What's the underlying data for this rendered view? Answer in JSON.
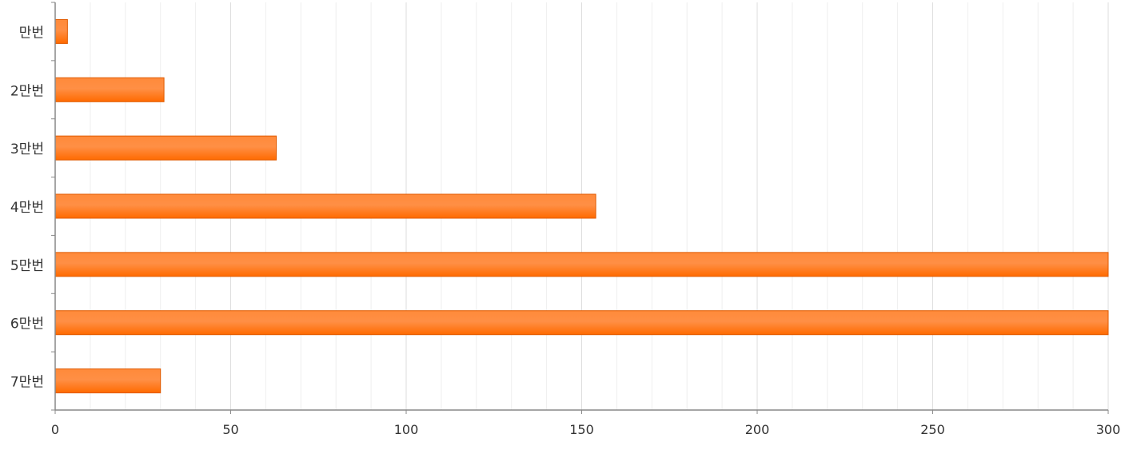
{
  "chart_data": {
    "type": "bar",
    "orientation": "horizontal",
    "categories": [
      "만번",
      "2만번",
      "3만번",
      "4만번",
      "5만번",
      "6만번",
      "7만번"
    ],
    "values": [
      3.5,
      31,
      63,
      154,
      300,
      300,
      30
    ],
    "xlim": [
      0,
      300
    ],
    "xticks": [
      0,
      50,
      100,
      150,
      200,
      250,
      300
    ],
    "minor_grid_step": 10,
    "grid": true,
    "title": "",
    "xlabel": "",
    "ylabel": "",
    "colors": {
      "bar": "#ff7a1f",
      "bar_border": "#e05a00",
      "grid_major": "#dddddd",
      "grid_minor": "#eeeeee",
      "axis": "#888888"
    }
  }
}
